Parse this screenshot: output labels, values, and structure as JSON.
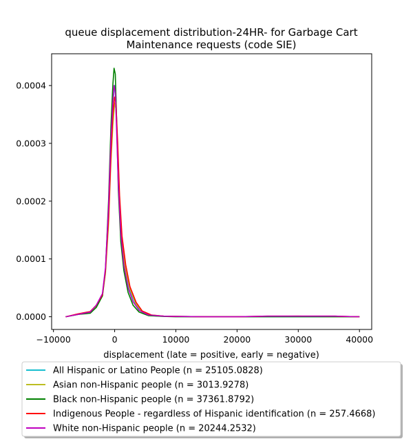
{
  "chart_data": {
    "type": "line",
    "title_lines": [
      "queue displacement distribution-24HR-  for Garbage Cart",
      "Maintenance  requests (code SIE)"
    ],
    "xlabel": "displacement (late = positive, early = negative)",
    "ylabel": "",
    "xlim": [
      -10300,
      42000
    ],
    "ylim": [
      -2.2e-05,
      0.000455
    ],
    "x_ticks": [
      -10000,
      0,
      10000,
      20000,
      30000,
      40000
    ],
    "x_tick_labels": [
      "−10000",
      "0",
      "10000",
      "20000",
      "30000",
      "40000"
    ],
    "y_ticks": [
      0.0,
      0.0001,
      0.0002,
      0.0003,
      0.0004
    ],
    "y_tick_labels": [
      "0.0000",
      "0.0001",
      "0.0002",
      "0.0003",
      "0.0004"
    ],
    "grid": false,
    "legend_position": "below-plot",
    "series": [
      {
        "name": "All Hispanic or Latino People (n = 25105.0828)",
        "color": "#17becf",
        "points": [
          [
            -8000,
            0
          ],
          [
            -6000,
            4e-06
          ],
          [
            -4000,
            7e-06
          ],
          [
            -3000,
            1.8e-05
          ],
          [
            -2000,
            3.8e-05
          ],
          [
            -1500,
            8e-05
          ],
          [
            -1000,
            0.00018
          ],
          [
            -600,
            0.0003
          ],
          [
            -300,
            0.00037
          ],
          [
            0,
            0.0004
          ],
          [
            200,
            0.00038
          ],
          [
            500,
            0.00028
          ],
          [
            800,
            0.00018
          ],
          [
            1200,
            0.00012
          ],
          [
            1800,
            7.5e-05
          ],
          [
            2500,
            4.5e-05
          ],
          [
            3500,
            2e-05
          ],
          [
            4500,
            8e-06
          ],
          [
            6000,
            2e-06
          ],
          [
            8000,
            5e-07
          ],
          [
            10000,
            5e-07
          ],
          [
            15000,
            0
          ],
          [
            20000,
            0
          ],
          [
            25000,
            0
          ],
          [
            30000,
            0
          ],
          [
            35000,
            0
          ],
          [
            40000,
            0
          ]
        ]
      },
      {
        "name": "Asian non-Hispanic people (n = 3013.9278)",
        "color": "#bcbd22",
        "points": [
          [
            -8000,
            0
          ],
          [
            -6000,
            4e-06
          ],
          [
            -4000,
            8e-06
          ],
          [
            -3000,
            1.8e-05
          ],
          [
            -2000,
            3.6e-05
          ],
          [
            -1500,
            7.5e-05
          ],
          [
            -1000,
            0.00016
          ],
          [
            -600,
            0.00027
          ],
          [
            -300,
            0.00033
          ],
          [
            0,
            0.00037
          ],
          [
            200,
            0.00036
          ],
          [
            500,
            0.00029
          ],
          [
            800,
            0.0002
          ],
          [
            1200,
            0.000135
          ],
          [
            1800,
            8e-05
          ],
          [
            2500,
            4.8e-05
          ],
          [
            3500,
            2.2e-05
          ],
          [
            4500,
            9e-06
          ],
          [
            6000,
            3e-06
          ],
          [
            8000,
            1e-06
          ],
          [
            10000,
            5e-07
          ],
          [
            15000,
            0
          ],
          [
            20000,
            0
          ],
          [
            25000,
            5e-07
          ],
          [
            30000,
            1e-06
          ],
          [
            35000,
            0
          ],
          [
            40000,
            0
          ]
        ]
      },
      {
        "name": "Black non-Hispanic people (n = 37361.8792)",
        "color": "#008000",
        "points": [
          [
            -8000,
            0
          ],
          [
            -6000,
            4e-06
          ],
          [
            -4000,
            6e-06
          ],
          [
            -3000,
            1.6e-05
          ],
          [
            -2000,
            3.6e-05
          ],
          [
            -1500,
            8e-05
          ],
          [
            -1000,
            0.0002
          ],
          [
            -600,
            0.00033
          ],
          [
            -300,
            0.0004
          ],
          [
            -100,
            0.00043
          ],
          [
            100,
            0.00042
          ],
          [
            300,
            0.00035
          ],
          [
            600,
            0.00022
          ],
          [
            1000,
            0.00013
          ],
          [
            1500,
            8e-05
          ],
          [
            2200,
            4.2e-05
          ],
          [
            3000,
            2e-05
          ],
          [
            4000,
            8e-06
          ],
          [
            5500,
            2e-06
          ],
          [
            8000,
            5e-07
          ],
          [
            10000,
            0
          ],
          [
            15000,
            0
          ],
          [
            20000,
            0
          ],
          [
            25000,
            0
          ],
          [
            30000,
            0
          ],
          [
            35000,
            0
          ],
          [
            40000,
            0
          ]
        ]
      },
      {
        "name": "Indigenous People - regardless of Hispanic identification (n = 257.4668)",
        "color": "#ff0000",
        "points": [
          [
            -8000,
            0
          ],
          [
            -6000,
            5e-06
          ],
          [
            -4000,
            9e-06
          ],
          [
            -3000,
            2e-05
          ],
          [
            -2000,
            3.8e-05
          ],
          [
            -1500,
            8e-05
          ],
          [
            -1000,
            0.00017
          ],
          [
            -600,
            0.00028
          ],
          [
            -300,
            0.00035
          ],
          [
            0,
            0.00038
          ],
          [
            200,
            0.00037
          ],
          [
            500,
            0.0003
          ],
          [
            800,
            0.00021
          ],
          [
            1200,
            0.00014
          ],
          [
            1800,
            9e-05
          ],
          [
            2500,
            5.2e-05
          ],
          [
            3500,
            2.5e-05
          ],
          [
            4500,
            1e-05
          ],
          [
            6000,
            3e-06
          ],
          [
            8000,
            1e-06
          ],
          [
            10000,
            5e-07
          ],
          [
            15000,
            0
          ],
          [
            20000,
            0
          ],
          [
            25000,
            1e-06
          ],
          [
            30000,
            1e-06
          ],
          [
            36000,
            1e-06
          ],
          [
            40000,
            0
          ]
        ]
      },
      {
        "name": "White non-Hispanic people (n = 20244.2532)",
        "color": "#bf00bf",
        "points": [
          [
            -8000,
            0
          ],
          [
            -6000,
            4e-06
          ],
          [
            -4000,
            8e-06
          ],
          [
            -3000,
            2e-05
          ],
          [
            -2000,
            4e-05
          ],
          [
            -1500,
            8.5e-05
          ],
          [
            -1000,
            0.00019
          ],
          [
            -600,
            0.00031
          ],
          [
            -300,
            0.00037
          ],
          [
            -100,
            0.0004
          ],
          [
            100,
            0.00039
          ],
          [
            300,
            0.00033
          ],
          [
            600,
            0.00023
          ],
          [
            1000,
            0.000145
          ],
          [
            1500,
            9e-05
          ],
          [
            2200,
            5e-05
          ],
          [
            3000,
            2.6e-05
          ],
          [
            4000,
            1.1e-05
          ],
          [
            5500,
            3e-06
          ],
          [
            8000,
            1e-06
          ],
          [
            10000,
            5e-07
          ],
          [
            15000,
            0
          ],
          [
            20000,
            0
          ],
          [
            25000,
            1e-06
          ],
          [
            30000,
            1e-06
          ],
          [
            36000,
            1e-06
          ],
          [
            40000,
            0
          ]
        ]
      }
    ]
  }
}
